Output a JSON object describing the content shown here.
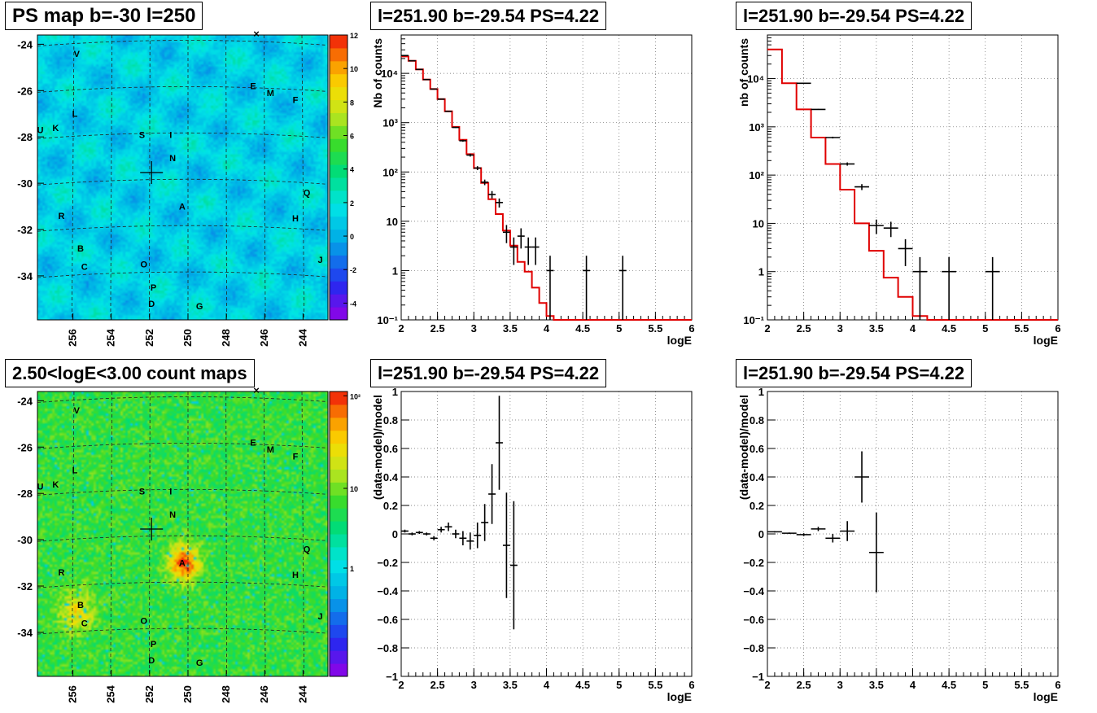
{
  "titles": {
    "map_top": "PS map b=-30 l=250",
    "map_bottom": "2.50<logE<3.00 count maps",
    "spec_tl": "l=251.90 b=-29.54 PS=4.22",
    "spec_tr": "l=251.90 b=-29.54 PS=4.22",
    "res_bl": "l=251.90 b=-29.54 PS=4.22",
    "res_br": "l=251.90 b=-29.54 PS=4.22"
  },
  "maps": {
    "x_ticks": [
      "256",
      "254",
      "252",
      "250",
      "248",
      "246",
      "244"
    ],
    "y_ticks": [
      "-24",
      "-26",
      "-28",
      "-30",
      "-32",
      "-34"
    ],
    "source_labels": [
      {
        "t": "V",
        "l": 255.8,
        "b": -24.4
      },
      {
        "t": "E",
        "l": 246.6,
        "b": -25.8
      },
      {
        "t": "M",
        "l": 245.7,
        "b": -26.1
      },
      {
        "t": "F",
        "l": 244.4,
        "b": -26.4
      },
      {
        "t": "L",
        "l": 255.9,
        "b": -27.0
      },
      {
        "t": "U",
        "l": 257.7,
        "b": -27.7
      },
      {
        "t": "K",
        "l": 256.9,
        "b": -27.6
      },
      {
        "t": "S",
        "l": 252.4,
        "b": -27.9
      },
      {
        "t": "I",
        "l": 250.9,
        "b": -27.9
      },
      {
        "t": "N",
        "l": 250.8,
        "b": -28.9
      },
      {
        "t": "Q",
        "l": 243.8,
        "b": -30.4
      },
      {
        "t": "A",
        "l": 250.3,
        "b": -31.0
      },
      {
        "t": "R",
        "l": 256.6,
        "b": -31.4
      },
      {
        "t": "H",
        "l": 244.4,
        "b": -31.5
      },
      {
        "t": "B",
        "l": 255.6,
        "b": -32.8
      },
      {
        "t": "C",
        "l": 255.4,
        "b": -33.6
      },
      {
        "t": "O",
        "l": 252.3,
        "b": -33.5
      },
      {
        "t": "J",
        "l": 243.1,
        "b": -33.3
      },
      {
        "t": "P",
        "l": 251.8,
        "b": -34.5
      },
      {
        "t": "D",
        "l": 251.9,
        "b": -35.2
      },
      {
        "t": "G",
        "l": 249.4,
        "b": -35.3
      }
    ],
    "marker": {
      "l": 251.9,
      "b": -29.54
    },
    "ps_scale": {
      "ticks": [
        "-4",
        "-2",
        "0",
        "2",
        "4",
        "6",
        "8",
        "10",
        "12"
      ],
      "min": -5,
      "max": 12
    },
    "count_scale": {
      "ticks": [
        "1",
        "10",
        "10²"
      ]
    }
  },
  "chart_data": [
    {
      "type": "line",
      "name": "spectrum_left",
      "xlabel": "logE",
      "ylabel": "Nb of counts",
      "xlim": [
        2,
        6
      ],
      "ylim": [
        0.1,
        60000
      ],
      "yscale": "log",
      "x_ticks": [
        "2",
        "2.5",
        "3",
        "3.5",
        "4",
        "4.5",
        "5",
        "5.5",
        "6"
      ],
      "y_ticks": [
        "10⁻¹",
        "1",
        "10",
        "10²",
        "10³",
        "10⁴"
      ],
      "model_edges": [
        2.0,
        2.1,
        2.2,
        2.3,
        2.4,
        2.5,
        2.6,
        2.7,
        2.8,
        2.9,
        3.0,
        3.1,
        3.2,
        3.3,
        3.4,
        3.5,
        3.6,
        3.7,
        3.8,
        3.9,
        4.0,
        4.1,
        4.2,
        6.0
      ],
      "model_values": [
        22000,
        18000,
        12000,
        7500,
        4800,
        3000,
        1700,
        820,
        450,
        230,
        120,
        60,
        28,
        14,
        6.5,
        3.2,
        1.5,
        0.95,
        0.45,
        0.22,
        0.12,
        0.1,
        0.1
      ],
      "data": [
        {
          "x": 2.05,
          "y": 23000,
          "yl": 22800,
          "yh": 23200,
          "dx": 0.05
        },
        {
          "x": 2.15,
          "y": 18000,
          "yl": 17800,
          "yh": 18200,
          "dx": 0.05
        },
        {
          "x": 2.25,
          "y": 12000,
          "yl": 11800,
          "yh": 12200,
          "dx": 0.05
        },
        {
          "x": 2.35,
          "y": 7500,
          "yl": 7400,
          "yh": 7600,
          "dx": 0.05
        },
        {
          "x": 2.45,
          "y": 4800,
          "yl": 4700,
          "yh": 4900,
          "dx": 0.05
        },
        {
          "x": 2.55,
          "y": 3000,
          "yl": 2950,
          "yh": 3050,
          "dx": 0.05
        },
        {
          "x": 2.65,
          "y": 1700,
          "yl": 1650,
          "yh": 1750,
          "dx": 0.05
        },
        {
          "x": 2.75,
          "y": 800,
          "yl": 780,
          "yh": 820,
          "dx": 0.05
        },
        {
          "x": 2.85,
          "y": 430,
          "yl": 410,
          "yh": 450,
          "dx": 0.05
        },
        {
          "x": 2.95,
          "y": 220,
          "yl": 205,
          "yh": 235,
          "dx": 0.05
        },
        {
          "x": 3.05,
          "y": 120,
          "yl": 109,
          "yh": 131,
          "dx": 0.05
        },
        {
          "x": 3.15,
          "y": 62,
          "yl": 54,
          "yh": 70,
          "dx": 0.05
        },
        {
          "x": 3.25,
          "y": 35,
          "yl": 29,
          "yh": 41,
          "dx": 0.05
        },
        {
          "x": 3.35,
          "y": 24,
          "yl": 19,
          "yh": 29,
          "dx": 0.05
        },
        {
          "x": 3.45,
          "y": 6,
          "yl": 3.6,
          "yh": 8.4,
          "dx": 0.05
        },
        {
          "x": 3.55,
          "y": 3,
          "yl": 1.3,
          "yh": 4.7,
          "dx": 0.05
        },
        {
          "x": 3.65,
          "y": 5,
          "yl": 2.8,
          "yh": 7.2,
          "dx": 0.05
        },
        {
          "x": 3.75,
          "y": 3,
          "yl": 1.3,
          "yh": 4.7,
          "dx": 0.05
        },
        {
          "x": 3.85,
          "y": 3,
          "yl": 1.3,
          "yh": 4.7,
          "dx": 0.05
        },
        {
          "x": 4.05,
          "y": 1,
          "yl": 0.1,
          "yh": 2.0,
          "dx": 0.05
        },
        {
          "x": 4.55,
          "y": 1,
          "yl": 0.1,
          "yh": 2.0,
          "dx": 0.05
        },
        {
          "x": 5.05,
          "y": 1,
          "yl": 0.1,
          "yh": 2.0,
          "dx": 0.05
        }
      ]
    },
    {
      "type": "line",
      "name": "spectrum_right",
      "xlabel": "logE",
      "ylabel": "nb of counts",
      "xlim": [
        2,
        6
      ],
      "ylim": [
        0.1,
        80000
      ],
      "yscale": "log",
      "x_ticks": [
        "2",
        "2.5",
        "3",
        "3.5",
        "4",
        "4.5",
        "5",
        "5.5",
        "6"
      ],
      "y_ticks": [
        "10⁻¹",
        "1",
        "10",
        "10²",
        "10³",
        "10⁴"
      ],
      "model_edges": [
        2.0,
        2.2,
        2.4,
        2.6,
        2.8,
        3.0,
        3.2,
        3.4,
        3.6,
        3.8,
        4.0,
        4.2,
        6.0
      ],
      "model_values": [
        40000,
        8000,
        2300,
        600,
        170,
        50,
        10,
        2.7,
        0.75,
        0.3,
        0.12,
        0.1
      ],
      "data": [
        {
          "x": 2.5,
          "y": 8000,
          "yl": 7900,
          "yh": 8100,
          "dx": 0.1
        },
        {
          "x": 2.7,
          "y": 2300,
          "yl": 2250,
          "yh": 2350,
          "dx": 0.1
        },
        {
          "x": 2.9,
          "y": 600,
          "yl": 575,
          "yh": 625,
          "dx": 0.1
        },
        {
          "x": 3.1,
          "y": 170,
          "yl": 157,
          "yh": 183,
          "dx": 0.1
        },
        {
          "x": 3.3,
          "y": 57,
          "yl": 49,
          "yh": 65,
          "dx": 0.1
        },
        {
          "x": 3.5,
          "y": 9,
          "yl": 6,
          "yh": 12,
          "dx": 0.1
        },
        {
          "x": 3.7,
          "y": 8,
          "yl": 5.2,
          "yh": 10.8,
          "dx": 0.1
        },
        {
          "x": 3.9,
          "y": 3,
          "yl": 1.3,
          "yh": 4.7,
          "dx": 0.1
        },
        {
          "x": 4.1,
          "y": 1,
          "yl": 0.1,
          "yh": 2.0,
          "dx": 0.1
        },
        {
          "x": 4.5,
          "y": 1,
          "yl": 0.1,
          "yh": 2.0,
          "dx": 0.1
        },
        {
          "x": 5.1,
          "y": 1,
          "yl": 0.1,
          "yh": 2.0,
          "dx": 0.1
        }
      ]
    },
    {
      "type": "scatter",
      "name": "residual_left",
      "xlabel": "logE",
      "ylabel": "(data-model)/model",
      "xlim": [
        2,
        6
      ],
      "ylim": [
        -1,
        1
      ],
      "x_ticks": [
        "2",
        "2.5",
        "3",
        "3.5",
        "4",
        "4.5",
        "5",
        "5.5",
        "6"
      ],
      "y_ticks": [
        "−1",
        "−0.8",
        "−0.6",
        "−0.4",
        "−0.2",
        "0",
        "0.2",
        "0.4",
        "0.6",
        "0.8",
        "1"
      ],
      "data": [
        {
          "x": 2.05,
          "y": 0.02,
          "yl": 0.01,
          "yh": 0.03,
          "dx": 0.05
        },
        {
          "x": 2.15,
          "y": 0.0,
          "yl": -0.01,
          "yh": 0.01,
          "dx": 0.05
        },
        {
          "x": 2.25,
          "y": 0.01,
          "yl": 0.0,
          "yh": 0.02,
          "dx": 0.05
        },
        {
          "x": 2.35,
          "y": 0.0,
          "yl": -0.01,
          "yh": 0.01,
          "dx": 0.05
        },
        {
          "x": 2.45,
          "y": -0.03,
          "yl": -0.045,
          "yh": -0.015,
          "dx": 0.05
        },
        {
          "x": 2.55,
          "y": 0.03,
          "yl": 0.01,
          "yh": 0.05,
          "dx": 0.05
        },
        {
          "x": 2.65,
          "y": 0.05,
          "yl": 0.02,
          "yh": 0.08,
          "dx": 0.05
        },
        {
          "x": 2.75,
          "y": 0.0,
          "yl": -0.03,
          "yh": 0.03,
          "dx": 0.05
        },
        {
          "x": 2.85,
          "y": -0.03,
          "yl": -0.08,
          "yh": 0.02,
          "dx": 0.05
        },
        {
          "x": 2.95,
          "y": -0.05,
          "yl": -0.11,
          "yh": 0.01,
          "dx": 0.05
        },
        {
          "x": 3.05,
          "y": -0.01,
          "yl": -0.1,
          "yh": 0.08,
          "dx": 0.05
        },
        {
          "x": 3.15,
          "y": 0.08,
          "yl": -0.05,
          "yh": 0.21,
          "dx": 0.05
        },
        {
          "x": 3.25,
          "y": 0.28,
          "yl": 0.07,
          "yh": 0.49,
          "dx": 0.05
        },
        {
          "x": 3.35,
          "y": 0.64,
          "yl": 0.31,
          "yh": 0.97,
          "dx": 0.05
        },
        {
          "x": 3.45,
          "y": -0.08,
          "yl": -0.45,
          "yh": 0.29,
          "dx": 0.05
        },
        {
          "x": 3.55,
          "y": -0.22,
          "yl": -0.67,
          "yh": 0.23,
          "dx": 0.05
        }
      ]
    },
    {
      "type": "scatter",
      "name": "residual_right",
      "xlabel": "logE",
      "ylabel": "(data-model)/model",
      "xlim": [
        2,
        6
      ],
      "ylim": [
        -1,
        1
      ],
      "x_ticks": [
        "2",
        "2.5",
        "3",
        "3.5",
        "4",
        "4.5",
        "5",
        "5.5",
        "6"
      ],
      "y_ticks": [
        "−1",
        "−0.8",
        "−0.6",
        "−0.4",
        "−0.2",
        "0",
        "0.2",
        "0.4",
        "0.6",
        "0.8",
        "1"
      ],
      "data": [
        {
          "x": 2.1,
          "y": 0.015,
          "yl": 0.01,
          "yh": 0.02,
          "dx": 0.1
        },
        {
          "x": 2.3,
          "y": 0.005,
          "yl": 0.0,
          "yh": 0.01,
          "dx": 0.1
        },
        {
          "x": 2.5,
          "y": -0.005,
          "yl": -0.015,
          "yh": 0.005,
          "dx": 0.1
        },
        {
          "x": 2.7,
          "y": 0.035,
          "yl": 0.02,
          "yh": 0.05,
          "dx": 0.1
        },
        {
          "x": 2.9,
          "y": -0.03,
          "yl": -0.06,
          "yh": 0.0,
          "dx": 0.1
        },
        {
          "x": 3.1,
          "y": 0.02,
          "yl": -0.05,
          "yh": 0.09,
          "dx": 0.1
        },
        {
          "x": 3.3,
          "y": 0.4,
          "yl": 0.22,
          "yh": 0.58,
          "dx": 0.1
        },
        {
          "x": 3.5,
          "y": -0.13,
          "yl": -0.41,
          "yh": 0.15,
          "dx": 0.1
        }
      ]
    }
  ]
}
